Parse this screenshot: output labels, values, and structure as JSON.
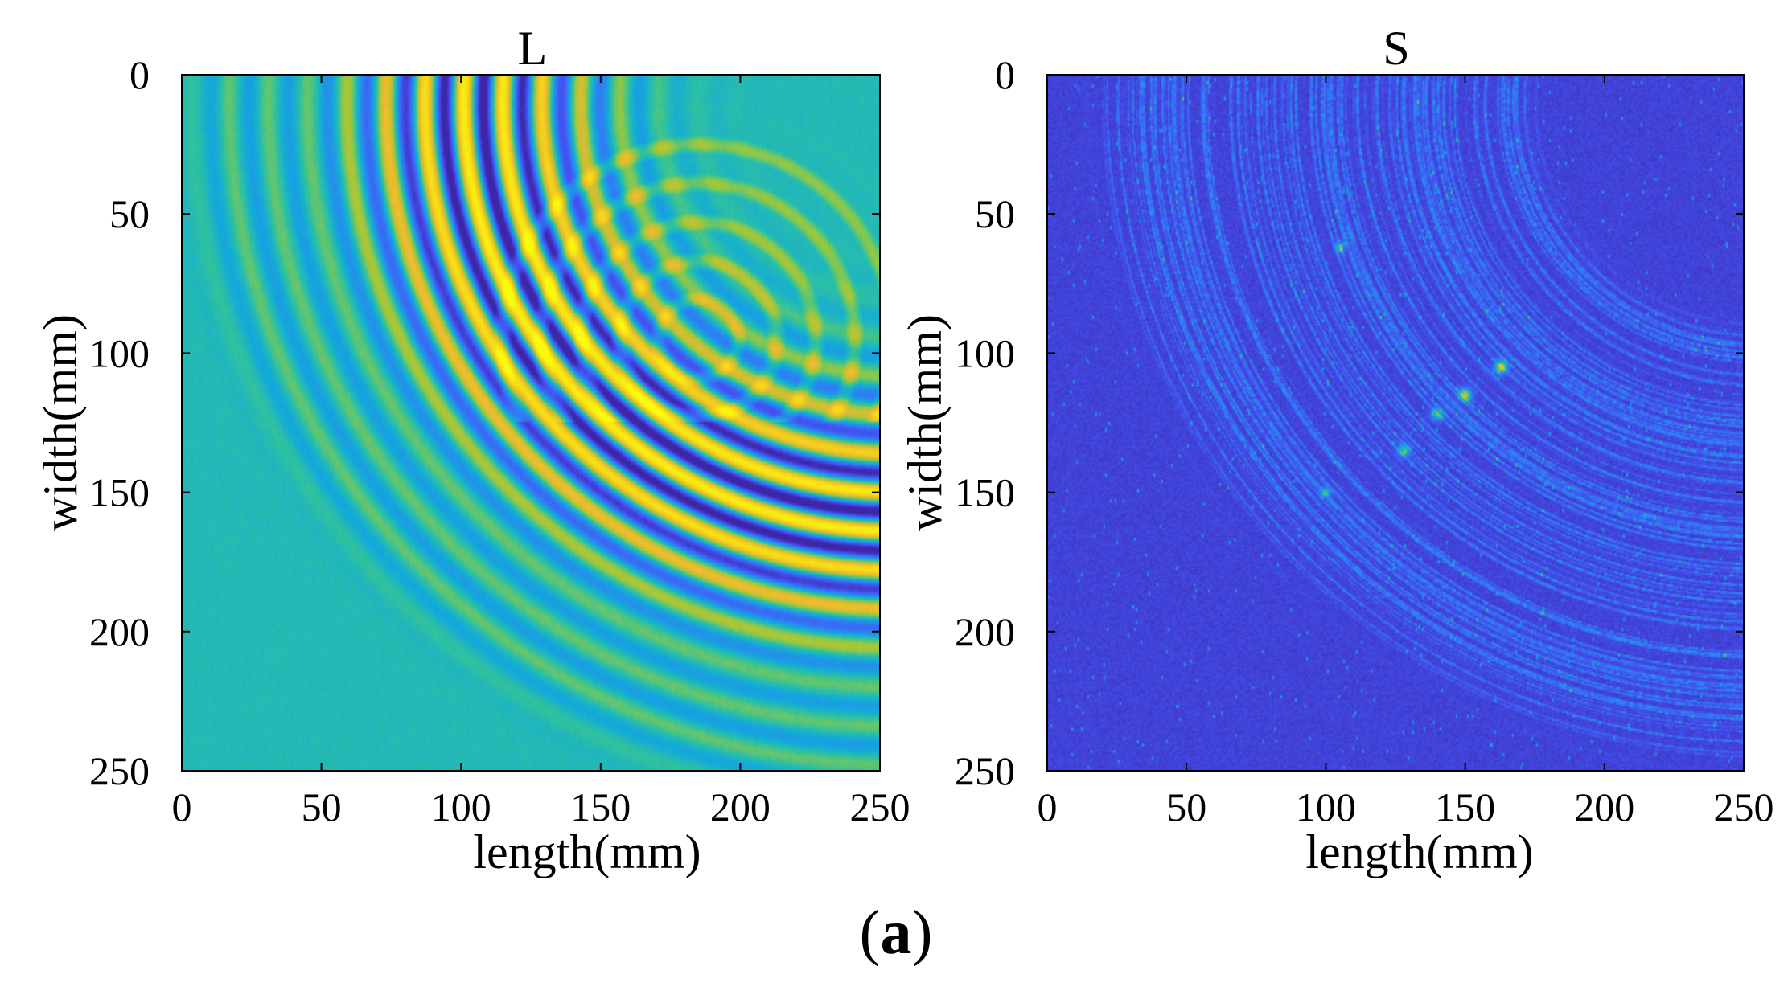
{
  "colors": {
    "axis": "#000000",
    "parula": [
      "#3e26a8",
      "#4353f2",
      "#2f80f3",
      "#13abd9",
      "#30c29e",
      "#9dc83c",
      "#eaba30",
      "#f7dc15",
      "#f9fb0e"
    ]
  },
  "chart_data": [
    {
      "type": "heatmap",
      "panel": "L",
      "title": "L",
      "xlabel": "length(mm)",
      "ylabel": "width(mm)",
      "xlim": [
        0,
        250
      ],
      "ylim": [
        0,
        250
      ],
      "y_reversed": true,
      "xticks": [
        0,
        50,
        100,
        150,
        200,
        250
      ],
      "yticks": [
        0,
        50,
        100,
        150,
        200,
        250
      ],
      "colormap": "parula",
      "pattern": {
        "description": "concentric wavefront rings",
        "main_wave": {
          "center": [
            255,
            10
          ],
          "inner_radius": 80,
          "outer_radius": 250,
          "wavelength": 14,
          "peak_radius": 150
        },
        "secondary_wave": {
          "center": [
            185,
            95
          ],
          "inner_radius": 8,
          "outer_radius": 85,
          "wavelength": 14
        },
        "background_level": 0.45
      }
    },
    {
      "type": "heatmap",
      "panel": "S",
      "title": "S",
      "xlabel": "length(mm)",
      "ylabel": "width(mm)",
      "xlim": [
        0,
        250
      ],
      "ylim": [
        0,
        250
      ],
      "y_reversed": true,
      "xticks": [
        0,
        50,
        100,
        150,
        200,
        250
      ],
      "yticks": [
        0,
        50,
        100,
        150,
        200,
        250
      ],
      "colormap": "parula",
      "pattern": {
        "description": "sparse speckle along arc with defect hot spots",
        "arc": {
          "center": [
            255,
            10
          ],
          "inner_radius": 75,
          "outer_radius": 245
        },
        "hot_spots": [
          [
            163,
            105
          ],
          [
            150,
            115
          ],
          [
            140,
            122
          ],
          [
            128,
            135
          ],
          [
            105,
            62
          ],
          [
            100,
            150
          ]
        ],
        "background_level": 0.05
      }
    }
  ],
  "caption": {
    "open": "(",
    "label": "a",
    "close": ")"
  }
}
